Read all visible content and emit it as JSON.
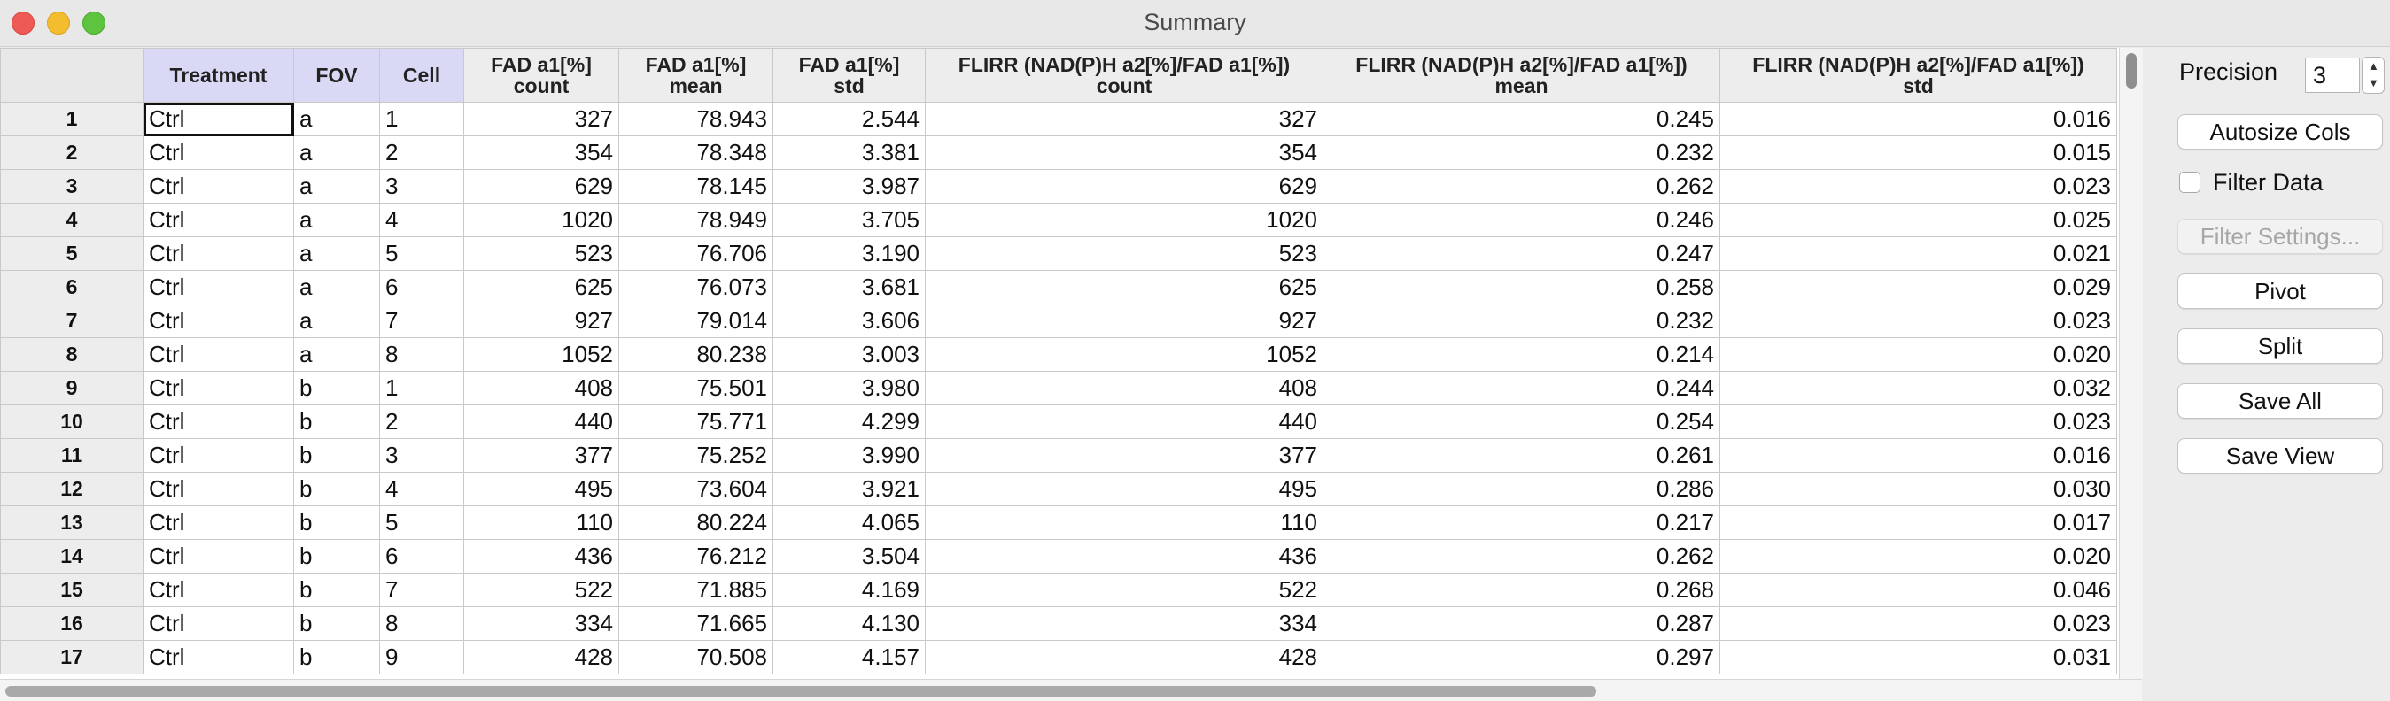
{
  "window": {
    "title": "Summary"
  },
  "table": {
    "headers": [
      {
        "line1": "",
        "line2": ""
      },
      {
        "line1": "Treatment",
        "line2": ""
      },
      {
        "line1": "FOV",
        "line2": ""
      },
      {
        "line1": "Cell",
        "line2": ""
      },
      {
        "line1": "FAD a1[%]",
        "line2": "count"
      },
      {
        "line1": "FAD a1[%]",
        "line2": "mean"
      },
      {
        "line1": "FAD a1[%]",
        "line2": "std"
      },
      {
        "line1": "FLIRR (NAD(P)H a2[%]/FAD a1[%])",
        "line2": "count"
      },
      {
        "line1": "FLIRR (NAD(P)H a2[%]/FAD a1[%])",
        "line2": "mean"
      },
      {
        "line1": "FLIRR (NAD(P)H a2[%]/FAD a1[%])",
        "line2": "std"
      }
    ],
    "rows": [
      [
        "1",
        "Ctrl",
        "a",
        "1",
        "327",
        "78.943",
        "2.544",
        "327",
        "0.245",
        "0.016"
      ],
      [
        "2",
        "Ctrl",
        "a",
        "2",
        "354",
        "78.348",
        "3.381",
        "354",
        "0.232",
        "0.015"
      ],
      [
        "3",
        "Ctrl",
        "a",
        "3",
        "629",
        "78.145",
        "3.987",
        "629",
        "0.262",
        "0.023"
      ],
      [
        "4",
        "Ctrl",
        "a",
        "4",
        "1020",
        "78.949",
        "3.705",
        "1020",
        "0.246",
        "0.025"
      ],
      [
        "5",
        "Ctrl",
        "a",
        "5",
        "523",
        "76.706",
        "3.190",
        "523",
        "0.247",
        "0.021"
      ],
      [
        "6",
        "Ctrl",
        "a",
        "6",
        "625",
        "76.073",
        "3.681",
        "625",
        "0.258",
        "0.029"
      ],
      [
        "7",
        "Ctrl",
        "a",
        "7",
        "927",
        "79.014",
        "3.606",
        "927",
        "0.232",
        "0.023"
      ],
      [
        "8",
        "Ctrl",
        "a",
        "8",
        "1052",
        "80.238",
        "3.003",
        "1052",
        "0.214",
        "0.020"
      ],
      [
        "9",
        "Ctrl",
        "b",
        "1",
        "408",
        "75.501",
        "3.980",
        "408",
        "0.244",
        "0.032"
      ],
      [
        "10",
        "Ctrl",
        "b",
        "2",
        "440",
        "75.771",
        "4.299",
        "440",
        "0.254",
        "0.023"
      ],
      [
        "11",
        "Ctrl",
        "b",
        "3",
        "377",
        "75.252",
        "3.990",
        "377",
        "0.261",
        "0.016"
      ],
      [
        "12",
        "Ctrl",
        "b",
        "4",
        "495",
        "73.604",
        "3.921",
        "495",
        "0.286",
        "0.030"
      ],
      [
        "13",
        "Ctrl",
        "b",
        "5",
        "110",
        "80.224",
        "4.065",
        "110",
        "0.217",
        "0.017"
      ],
      [
        "14",
        "Ctrl",
        "b",
        "6",
        "436",
        "76.212",
        "3.504",
        "436",
        "0.262",
        "0.020"
      ],
      [
        "15",
        "Ctrl",
        "b",
        "7",
        "522",
        "71.885",
        "4.169",
        "522",
        "0.268",
        "0.046"
      ],
      [
        "16",
        "Ctrl",
        "b",
        "8",
        "334",
        "71.665",
        "4.130",
        "334",
        "0.287",
        "0.023"
      ],
      [
        "17",
        "Ctrl",
        "b",
        "9",
        "428",
        "70.508",
        "4.157",
        "428",
        "0.297",
        "0.031"
      ]
    ]
  },
  "panel": {
    "precision_label": "Precision",
    "precision_value": "3",
    "autosize_label": "Autosize Cols",
    "filter_data_label": "Filter Data",
    "filter_settings_label": "Filter Settings...",
    "pivot_label": "Pivot",
    "split_label": "Split",
    "save_all_label": "Save All",
    "save_view_label": "Save View"
  },
  "colors": {
    "key_header_bg": "#d9d9f6",
    "header_bg": "#ededed",
    "close": "#ee5b55",
    "minimize": "#f3bd2f",
    "maximize": "#5ec440"
  }
}
